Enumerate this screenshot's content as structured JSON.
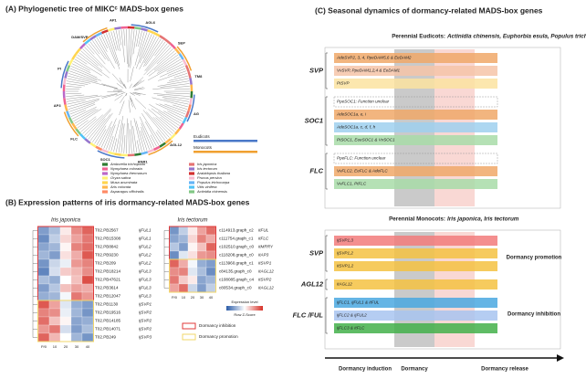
{
  "panel_a": {
    "title": "(A) Phylogenetic tree of MIKCᶜ MADS-box genes",
    "clades": [
      "DAM/SVP",
      "AP1",
      "AGL6",
      "SEP",
      "TM8",
      "AG",
      "AGL12",
      "ANR1",
      "SOC1",
      "FLC",
      "AP3",
      "PI"
    ],
    "lineages": [
      {
        "name": "Eudicots",
        "color": "#4a78c8"
      },
      {
        "name": "Monocots",
        "color": "#f0a030"
      }
    ],
    "species": [
      {
        "name": "Amborella trichopoda",
        "color": "#2e7d32"
      },
      {
        "name": "Nymphaea colorata",
        "color": "#f06292"
      },
      {
        "name": "Nymphaea thermarum",
        "color": "#ba68c8"
      },
      {
        "name": "Oryza sativa",
        "color": "#fff176"
      },
      {
        "name": "Musa acuminata",
        "color": "#ffd54f"
      },
      {
        "name": "Aris colorata",
        "color": "#ffb74d"
      },
      {
        "name": "Asparagus officinalis",
        "color": "#ff8a65"
      },
      {
        "name": "Iris japonica",
        "color": "#e57373"
      },
      {
        "name": "Iris tectorum",
        "color": "#9575cd"
      },
      {
        "name": "Arabidopsis thaliana",
        "color": "#d32f2f"
      },
      {
        "name": "Prunus persica",
        "color": "#f8bbd0"
      },
      {
        "name": "Populus trichocarpa",
        "color": "#64b5f6"
      },
      {
        "name": "Vitis vinifera",
        "color": "#4fc3f7"
      },
      {
        "name": "Actinidia chinensis",
        "color": "#81c784"
      }
    ]
  },
  "panel_b": {
    "title": "(B) Expression patterns of iris dormancy-related MADS-box genes",
    "legend_title": "Expression level",
    "legend_subtitle": "Row Z-Score",
    "boxes": [
      {
        "label": "Dormancy inhibition",
        "color": "#e03a3a"
      },
      {
        "label": "Dormancy promotion",
        "color": "#f2d76a"
      }
    ],
    "heatmaps": [
      {
        "title": "Iris japonica",
        "columns": [
          "P/0",
          "10",
          "20",
          "30",
          "40"
        ],
        "rows": [
          {
            "id": "T02.PB2567",
            "gene": "IjFUL1",
            "values": [
              -1.2,
              -0.8,
              0.2,
              1.1,
              1.5
            ]
          },
          {
            "id": "T02.PB15308",
            "gene": "IjFUL1",
            "values": [
              -1.4,
              -0.6,
              0.4,
              0.9,
              1.3
            ]
          },
          {
            "id": "T02.PB8842",
            "gene": "IjFUL2",
            "values": [
              -1.1,
              -0.9,
              0.1,
              1.2,
              1.4
            ]
          },
          {
            "id": "T02.PB9230",
            "gene": "IjFUL2",
            "values": [
              -0.9,
              -1.2,
              0.3,
              0.8,
              1.6
            ]
          },
          {
            "id": "T02.PB209",
            "gene": "IjFUL2",
            "values": [
              -1.3,
              -0.5,
              -0.2,
              1.0,
              1.2
            ]
          },
          {
            "id": "T02.PB18214",
            "gene": "IjFUL3",
            "values": [
              -1.5,
              -0.4,
              0.5,
              0.7,
              1.1
            ]
          },
          {
            "id": "T02.PB47621",
            "gene": "IjFUL3",
            "values": [
              -0.8,
              -1.0,
              0.0,
              0.6,
              1.7
            ]
          },
          {
            "id": "T02.PB3614",
            "gene": "IjFUL3",
            "values": [
              -1.2,
              -0.7,
              0.6,
              0.9,
              0.8
            ]
          },
          {
            "id": "T02.PB12047",
            "gene": "IjFUL3",
            "values": [
              -1.0,
              -0.9,
              -0.1,
              1.3,
              1.0
            ]
          },
          {
            "id": "T02.PB1130",
            "gene": "IjSVP1",
            "values": [
              1.6,
              0.9,
              -0.3,
              -1.0,
              -1.2
            ]
          },
          {
            "id": "T02.PB19516",
            "gene": "IjSVP2",
            "values": [
              1.2,
              1.1,
              -0.2,
              -0.9,
              -1.3
            ]
          },
          {
            "id": "T02.PB14185",
            "gene": "IjSVP2",
            "values": [
              1.4,
              0.6,
              0.1,
              -1.1,
              -1.0
            ]
          },
          {
            "id": "T02.PB14071",
            "gene": "IjSVP2",
            "values": [
              1.0,
              1.3,
              -0.4,
              -1.2,
              -0.8
            ]
          },
          {
            "id": "T02.PB249",
            "gene": "IjSVP3",
            "values": [
              1.5,
              0.7,
              0.0,
              -0.9,
              -1.3
            ]
          }
        ]
      },
      {
        "title": "Iris tectorum",
        "columns": [
          "P/0",
          "10",
          "20",
          "30",
          "40"
        ],
        "rows": [
          {
            "id": "c114913.graph_c2",
            "gene": "ItFUL",
            "values": [
              -1.3,
              -0.6,
              0.2,
              0.9,
              1.4
            ]
          },
          {
            "id": "c111754.graph_c1",
            "gene": "ItFLC",
            "values": [
              -1.1,
              -0.9,
              0.4,
              1.2,
              0.8
            ]
          },
          {
            "id": "c102510.graph_c0",
            "gene": "ItMRRY",
            "values": [
              -0.7,
              -1.2,
              0.1,
              0.6,
              1.5
            ]
          },
          {
            "id": "c118208.graph_c0",
            "gene": "ItAP3",
            "values": [
              -1.4,
              -0.3,
              0.3,
              1.0,
              1.1
            ]
          },
          {
            "id": "c113960.graph_c1",
            "gene": "ItSVP1",
            "values": [
              1.5,
              0.8,
              -0.1,
              -1.0,
              -1.2
            ]
          },
          {
            "id": "c84135.graph_c0",
            "gene": "ItAGL12",
            "values": [
              1.1,
              1.2,
              -0.3,
              -0.8,
              -1.4
            ]
          },
          {
            "id": "c108085.graph_c4",
            "gene": "ItSVP2",
            "values": [
              1.3,
              0.5,
              0.2,
              -1.1,
              -0.9
            ]
          },
          {
            "id": "c80534.graph_c0",
            "gene": "ItAGL12",
            "values": [
              0.9,
              1.4,
              -0.5,
              -1.2,
              -0.6
            ]
          }
        ]
      }
    ]
  },
  "panel_c": {
    "title": "(C) Seasonal dynamics of dormancy-related MADS-box genes",
    "stages": [
      "Dormancy induction",
      "Dormancy",
      "Dormancy release"
    ],
    "eudicots": {
      "header": "Perennial Eudicots:",
      "species": "Actinidia chinensis, Euphorbia esula, Populus trichocarpa, Prunus persia, Vitis vinifera",
      "groups": [
        {
          "name": "SVP",
          "bars": [
            {
              "label": "AdeSVP2, 3, 4, PpeDAM5,6 & EeDAM2",
              "color": "#f0a868"
            },
            {
              "label": "VvSVP, PpeDAM1,2,4 & EeDAM1",
              "color": "#f6c4a8"
            },
            {
              "label": "PtSVP",
              "color": "#fbe3a0"
            }
          ]
        },
        {
          "name": "SOC1",
          "bars": [
            {
              "label": "PpeSOC1: Function unclear"
            },
            {
              "label": "AdeSOC1a, e, i",
              "color": "#f0a868"
            },
            {
              "label": "AdeSOC1a, c, d, f, h",
              "color": "#9fd0ee"
            },
            {
              "label": "PtSOC1, EeeSOC1 & VvSOC1",
              "color": "#a8dca8"
            }
          ]
        },
        {
          "name": "FLC",
          "bars": [
            {
              "label": "PpeFLC: Function unclear"
            },
            {
              "label": "VvFLC2, EeFLC & AdeFLC",
              "color": "#f0a868"
            },
            {
              "label": "VvFLC1, PtFLC",
              "color": "#a8dca8"
            }
          ]
        }
      ]
    },
    "monocots": {
      "header": "Perennial Monocots:",
      "species": "Iris japonica, Iris tectorum",
      "effects": [
        "Dormancy promotion",
        "Dormancy inhibition"
      ],
      "groups": [
        {
          "name": "SVP",
          "bars": [
            {
              "label": "IjSVP1,3",
              "color": "#f27b7b"
            },
            {
              "label": "IjSVP1,2",
              "color": "#f5c242"
            },
            {
              "label": "ItSVP1,2",
              "color": "#f5c242"
            }
          ]
        },
        {
          "name": "AGL12",
          "bars": [
            {
              "label": "ItAGL12",
              "color": "#f5c242"
            }
          ]
        },
        {
          "name": "FLC /FUL",
          "bars": [
            {
              "label": "IjFLC1, IjFUL1 & ItFUL",
              "color": "#4aa8e0"
            },
            {
              "label": "IjFLC2 & IjFUL2",
              "color": "#a8c4f0"
            },
            {
              "label": "IjFLC3 & ItFLC",
              "color": "#43b04a"
            }
          ]
        }
      ]
    }
  }
}
